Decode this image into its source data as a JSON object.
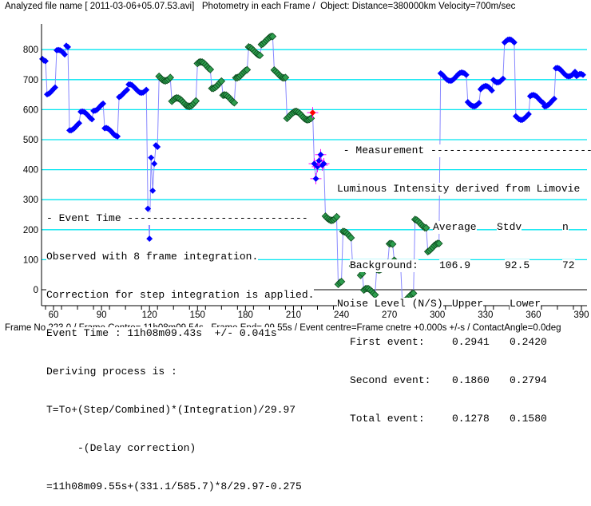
{
  "header": {
    "title": "Analyzed file name [ 2011-03-06+05.07.53.avi]   Photometry in each Frame /  Object: Distance=380000km Velocity=700m/sec"
  },
  "footer": {
    "status": "Frame No.223.0 / Frame Centre= 11h08m09.54s,  Frame End= 09.55s / Event centre=Frame cnetre +0.000s +/-s / ContactAngle=0.0deg"
  },
  "event_time": {
    "lines": [
      "- Event Time -----------------------------",
      "Observed with 8 frame integration.",
      "Correction for step integration is applied.",
      "Event Time : 11h08m09.43s  +/- 0.041s",
      "Deriving process is :",
      "T=To+(Step/Combined)*(Integration)/29.97",
      "     -(Delay correction)",
      "=11h08m09.55s+(331.1/585.7)*8/29.97-0.275"
    ]
  },
  "measurement": {
    "heading": " - Measurement ---------------------------",
    "subtitle": "Luminous Intensity derived from Limovie",
    "columns": [
      "Average",
      "Stdv",
      "n"
    ],
    "background": {
      "label": "Background:",
      "average": "106.9",
      "stdv": "92.5",
      "n": "72"
    },
    "noise_heading": "Noise Level (N/S)",
    "noise_columns": [
      "Upper",
      "Lower"
    ],
    "noise_rows": [
      {
        "label": "First event:",
        "upper": "0.2941",
        "lower": "0.2420"
      },
      {
        "label": "Second event:",
        "upper": "0.1860",
        "lower": "0.2794"
      },
      {
        "label": "Total event:",
        "upper": "0.1278",
        "lower": "0.1580"
      }
    ]
  },
  "chart_data": {
    "type": "scatter",
    "title": "Photometry in each Frame",
    "xlabel": "Frame No.",
    "ylabel": "Luminous Intensity",
    "xlim": [
      52,
      393
    ],
    "ylim": [
      -50,
      880
    ],
    "xticks": [
      60,
      90,
      120,
      150,
      180,
      210,
      240,
      270,
      300,
      330,
      360,
      390
    ],
    "yticks": [
      0,
      100,
      200,
      300,
      400,
      500,
      600,
      700,
      800
    ],
    "grid": true,
    "colors": {
      "blue": "#0000ff",
      "green": "#2e9e4e",
      "red": "#ff0000",
      "line": "#8888ff",
      "grid": "#00e5f0",
      "cross": "#ff00ff"
    },
    "segments_note": "approximate plateau segments [start_frame, end_frame, value, series]",
    "segments": [
      [
        53,
        55,
        775,
        "blue"
      ],
      [
        56,
        61,
        665,
        "blue"
      ],
      [
        62,
        67,
        785,
        "blue"
      ],
      [
        68,
        69,
        820,
        "blue"
      ],
      [
        70,
        76,
        545,
        "blue"
      ],
      [
        77,
        84,
        580,
        "blue"
      ],
      [
        85,
        91,
        610,
        "blue"
      ],
      [
        92,
        100,
        525,
        "blue"
      ],
      [
        101,
        106,
        655,
        "blue"
      ],
      [
        107,
        118,
        670,
        "blue"
      ],
      [
        119,
        119,
        270,
        "blue"
      ],
      [
        120,
        120,
        170,
        "blue"
      ],
      [
        121,
        121,
        440,
        "blue"
      ],
      [
        122,
        122,
        330,
        "blue"
      ],
      [
        123,
        123,
        420,
        "blue"
      ],
      [
        124,
        125,
        470,
        "blue"
      ],
      [
        126,
        133,
        710,
        "green"
      ],
      [
        134,
        149,
        625,
        "green"
      ],
      [
        150,
        158,
        745,
        "green"
      ],
      [
        159,
        165,
        685,
        "green"
      ],
      [
        166,
        173,
        635,
        "green"
      ],
      [
        174,
        181,
        720,
        "green"
      ],
      [
        182,
        189,
        795,
        "green"
      ],
      [
        190,
        197,
        830,
        "green"
      ],
      [
        198,
        205,
        720,
        "green"
      ],
      [
        206,
        221,
        580,
        "green"
      ],
      [
        222,
        222,
        590,
        "red"
      ],
      [
        223,
        223,
        420,
        "cross"
      ],
      [
        224,
        224,
        370,
        "cross"
      ],
      [
        225,
        225,
        410,
        "cross"
      ],
      [
        226,
        226,
        430,
        "cross"
      ],
      [
        227,
        227,
        450,
        "cross"
      ],
      [
        228,
        228,
        415,
        "cross"
      ],
      [
        229,
        229,
        420,
        "cross"
      ],
      [
        230,
        237,
        245,
        "green"
      ],
      [
        238,
        240,
        15,
        "green"
      ],
      [
        241,
        246,
        180,
        "green"
      ],
      [
        247,
        251,
        90,
        "green"
      ],
      [
        252,
        253,
        50,
        "green"
      ],
      [
        254,
        261,
        -10,
        "green"
      ],
      [
        262,
        269,
        80,
        "green"
      ],
      [
        270,
        272,
        140,
        "green"
      ],
      [
        273,
        277,
        90,
        "green"
      ],
      [
        278,
        285,
        -25,
        "green"
      ],
      [
        286,
        293,
        220,
        "green"
      ],
      [
        294,
        301,
        140,
        "green"
      ],
      [
        302,
        318,
        710,
        "blue"
      ],
      [
        319,
        326,
        625,
        "blue"
      ],
      [
        327,
        334,
        665,
        "blue"
      ],
      [
        335,
        341,
        705,
        "blue"
      ],
      [
        342,
        348,
        820,
        "blue"
      ],
      [
        349,
        357,
        580,
        "blue"
      ],
      [
        358,
        366,
        635,
        "blue"
      ],
      [
        367,
        373,
        625,
        "blue"
      ],
      [
        374,
        386,
        725,
        "blue"
      ],
      [
        387,
        391,
        705,
        "blue"
      ]
    ]
  }
}
